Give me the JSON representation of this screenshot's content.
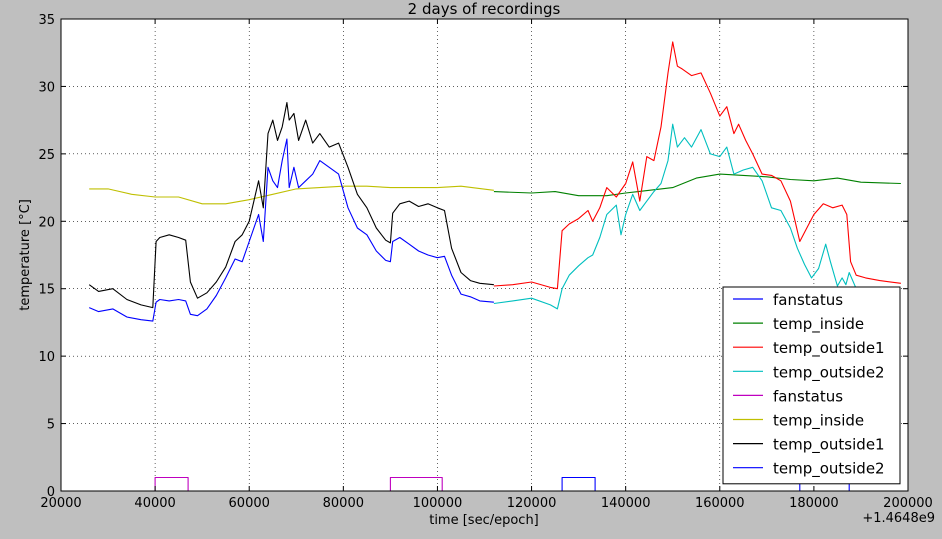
{
  "chart_data": {
    "type": "line",
    "title": "2 days of recordings",
    "xlabel": "time [sec/epoch]",
    "ylabel": "temperature [°C]",
    "x_offset_label": "+1.4648e9",
    "xlim": [
      20000,
      200000
    ],
    "ylim": [
      0,
      35
    ],
    "x_ticks": [
      20000,
      40000,
      60000,
      80000,
      100000,
      120000,
      140000,
      160000,
      180000,
      200000
    ],
    "y_ticks": [
      0,
      5,
      10,
      15,
      20,
      25,
      30,
      35
    ],
    "grid": true,
    "legend_position": "lower-right",
    "series": [
      {
        "name": "fanstatus",
        "color": "#0000ff",
        "x": [
          112000,
          126500,
          126500,
          133500,
          133500,
          177000,
          177000,
          187500,
          187500,
          198500
        ],
        "y": [
          0,
          0,
          1,
          1,
          0,
          0,
          1,
          1,
          0,
          0
        ]
      },
      {
        "name": "temp_inside",
        "color": "#008000",
        "x": [
          112000,
          120000,
          125000,
          130000,
          136000,
          140000,
          145000,
          150000,
          155000,
          160000,
          165000,
          170000,
          175000,
          180000,
          185000,
          190000,
          198500
        ],
        "y": [
          22.2,
          22.1,
          22.2,
          21.9,
          21.9,
          22.1,
          22.3,
          22.5,
          23.2,
          23.5,
          23.4,
          23.3,
          23.1,
          23.0,
          23.2,
          22.9,
          22.8
        ]
      },
      {
        "name": "temp_outside1",
        "color": "#ff0000",
        "x": [
          112000,
          116000,
          120000,
          124000,
          125500,
          126500,
          128000,
          130000,
          132000,
          133000,
          134500,
          136000,
          138000,
          140000,
          141500,
          143000,
          144500,
          146000,
          147500,
          149000,
          150000,
          151000,
          152000,
          154000,
          156000,
          158000,
          160000,
          161500,
          163000,
          164000,
          165500,
          167000,
          169000,
          171000,
          173000,
          175000,
          176000,
          177000,
          178500,
          180000,
          182000,
          184000,
          186000,
          187000,
          187800,
          189000,
          191000,
          194000,
          198500
        ],
        "y": [
          15.2,
          15.3,
          15.5,
          15.1,
          15.0,
          19.3,
          19.8,
          20.2,
          20.8,
          20.0,
          21.0,
          22.5,
          21.8,
          22.8,
          24.4,
          21.5,
          24.8,
          24.5,
          27.0,
          31.0,
          33.3,
          31.5,
          31.3,
          30.8,
          31.0,
          29.5,
          27.8,
          28.5,
          26.5,
          27.2,
          26.0,
          25.0,
          23.5,
          23.4,
          23.0,
          21.5,
          20.0,
          18.5,
          19.5,
          20.5,
          21.3,
          21.0,
          21.2,
          20.5,
          17.0,
          16.0,
          15.8,
          15.6,
          15.4
        ]
      },
      {
        "name": "temp_outside2",
        "color": "#00bfbf",
        "x": [
          112000,
          116000,
          120000,
          124000,
          125500,
          126500,
          128000,
          130000,
          132000,
          133000,
          134500,
          136000,
          138000,
          139000,
          140000,
          141500,
          143000,
          144500,
          146000,
          147500,
          149000,
          150000,
          151000,
          152500,
          154000,
          156000,
          158000,
          160000,
          161500,
          163000,
          165000,
          167000,
          169000,
          171000,
          173000,
          175000,
          176500,
          178000,
          179500,
          181000,
          182500,
          183500,
          185000,
          186000,
          186800,
          187500,
          189000
        ],
        "y": [
          13.9,
          14.1,
          14.3,
          13.8,
          13.5,
          15.0,
          16.0,
          16.7,
          17.3,
          17.5,
          18.8,
          20.5,
          21.2,
          19.0,
          20.5,
          22.0,
          20.8,
          21.5,
          22.2,
          22.8,
          24.5,
          27.2,
          25.5,
          26.2,
          25.5,
          26.8,
          25.0,
          24.8,
          25.5,
          23.5,
          23.8,
          24.0,
          23.0,
          21.0,
          20.8,
          19.5,
          18.0,
          16.8,
          15.8,
          16.5,
          18.3,
          17.0,
          15.2,
          15.8,
          15.3,
          16.2,
          15.0
        ]
      },
      {
        "name": "fanstatus",
        "color": "#bf00bf",
        "x": [
          26000,
          40000,
          40000,
          47000,
          47000,
          90000,
          90000,
          101000,
          101000,
          112000
        ],
        "y": [
          0,
          0,
          1,
          1,
          0,
          0,
          1,
          1,
          0,
          0
        ]
      },
      {
        "name": "temp_inside",
        "color": "#bfbf00",
        "x": [
          26000,
          30000,
          35000,
          40000,
          45000,
          50000,
          55000,
          60000,
          65000,
          70000,
          75000,
          80000,
          85000,
          90000,
          95000,
          100000,
          105000,
          112000
        ],
        "y": [
          22.4,
          22.4,
          22.0,
          21.8,
          21.8,
          21.3,
          21.3,
          21.6,
          22.0,
          22.4,
          22.5,
          22.6,
          22.6,
          22.5,
          22.5,
          22.5,
          22.6,
          22.3
        ]
      },
      {
        "name": "temp_outside1",
        "color": "#000000",
        "x": [
          26000,
          28000,
          31000,
          34000,
          37000,
          39500,
          40200,
          41000,
          43000,
          45000,
          46500,
          47500,
          49000,
          51000,
          53000,
          55000,
          57000,
          58500,
          60000,
          62000,
          63000,
          64000,
          65000,
          66000,
          67000,
          68000,
          68500,
          69500,
          70500,
          72000,
          73500,
          75000,
          77000,
          79000,
          81000,
          83000,
          85000,
          87000,
          89000,
          90000,
          90500,
          92000,
          94000,
          96000,
          98000,
          100000,
          101500,
          103000,
          105000,
          107000,
          109000,
          112000
        ],
        "y": [
          15.3,
          14.8,
          15.0,
          14.2,
          13.8,
          13.6,
          18.5,
          18.8,
          19.0,
          18.8,
          18.6,
          15.5,
          14.3,
          14.7,
          15.5,
          16.6,
          18.5,
          19.0,
          20.0,
          23.0,
          21.0,
          26.5,
          27.5,
          26.0,
          27.0,
          28.8,
          27.5,
          28.0,
          26.0,
          27.5,
          25.8,
          26.5,
          25.5,
          25.8,
          24.0,
          22.0,
          21.0,
          19.5,
          18.6,
          18.4,
          20.6,
          21.3,
          21.5,
          21.1,
          21.3,
          21.0,
          20.8,
          18.0,
          16.2,
          15.6,
          15.4,
          15.3
        ]
      },
      {
        "name": "temp_outside2",
        "color": "#0000ff",
        "x": [
          26000,
          28000,
          31000,
          34000,
          37000,
          39500,
          40200,
          41000,
          43000,
          45000,
          46500,
          47500,
          49000,
          51000,
          53000,
          55000,
          57000,
          58500,
          60000,
          62000,
          63000,
          64000,
          65000,
          66000,
          67000,
          68000,
          68500,
          69500,
          70500,
          72000,
          73500,
          75000,
          77000,
          79000,
          81000,
          83000,
          85000,
          87000,
          89000,
          90000,
          90500,
          92000,
          94000,
          96000,
          98000,
          100000,
          101500,
          103000,
          105000,
          107000,
          109000,
          112000
        ],
        "y": [
          13.6,
          13.3,
          13.5,
          12.9,
          12.7,
          12.6,
          14.0,
          14.2,
          14.1,
          14.2,
          14.1,
          13.1,
          13.0,
          13.5,
          14.5,
          15.8,
          17.2,
          17.0,
          18.5,
          20.5,
          18.5,
          24.0,
          23.0,
          22.5,
          24.5,
          26.1,
          22.5,
          24.0,
          22.5,
          23.0,
          23.5,
          24.5,
          24.0,
          23.5,
          21.0,
          19.5,
          19.0,
          17.8,
          17.1,
          17.0,
          18.5,
          18.8,
          18.3,
          17.8,
          17.5,
          17.3,
          17.4,
          16.0,
          14.6,
          14.4,
          14.1,
          14.0
        ]
      }
    ]
  }
}
